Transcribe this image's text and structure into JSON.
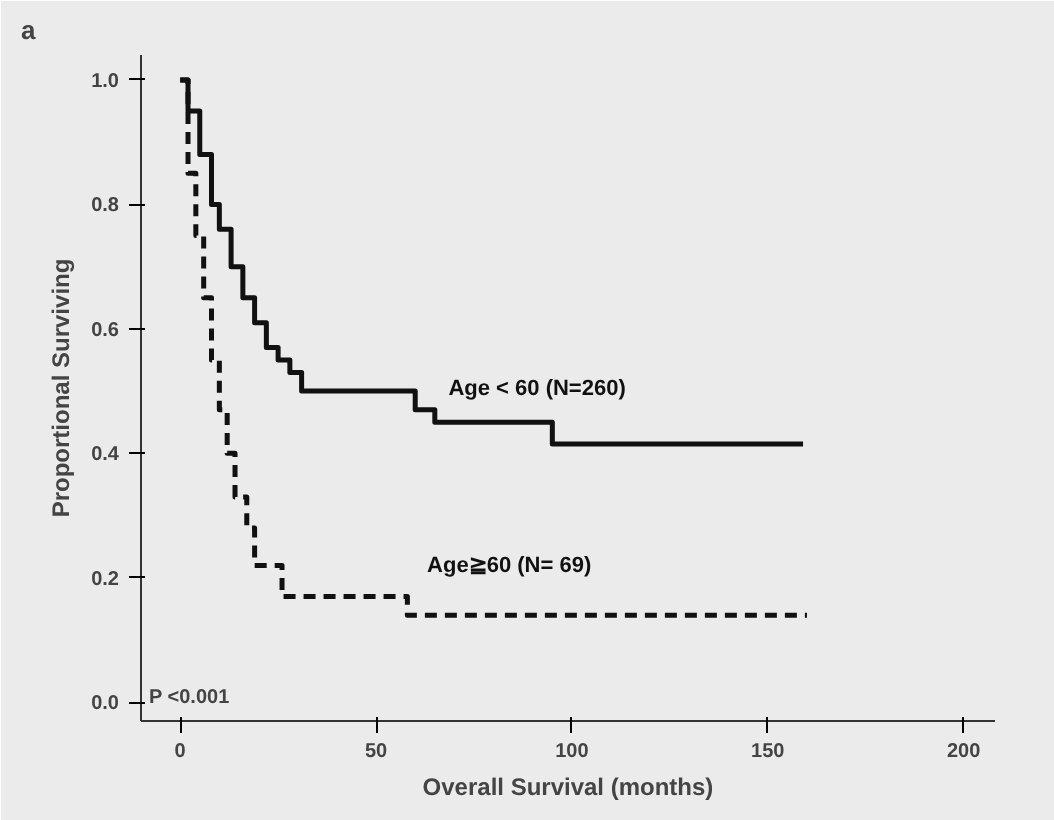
{
  "chart_data": {
    "type": "step",
    "xlabel": "Overall Survival (months)",
    "ylabel": "Proportional Surviving",
    "xlim": [
      -10,
      208
    ],
    "ylim": [
      -0.03,
      1.04
    ],
    "xticks": [
      0,
      50,
      100,
      150,
      200
    ],
    "yticks": [
      {
        "value": 0,
        "label": "0.0"
      },
      {
        "value": 0.2,
        "label": "0.2"
      },
      {
        "value": 0.4,
        "label": "0.4"
      },
      {
        "value": 0.6,
        "label": "0.6"
      },
      {
        "value": 0.8,
        "label": "0.8"
      },
      {
        "value": 1,
        "label": "1.0"
      }
    ],
    "grid": false,
    "series": [
      {
        "name": "Age < 60 (N=260)",
        "color": "#111111",
        "line_style": "solid",
        "x": [
          0,
          2,
          5,
          8,
          10,
          13,
          16,
          19,
          22,
          25,
          28,
          31,
          60,
          65,
          95,
          159
        ],
        "values": [
          1.0,
          0.95,
          0.88,
          0.8,
          0.76,
          0.7,
          0.65,
          0.61,
          0.57,
          0.55,
          0.53,
          0.5,
          0.47,
          0.45,
          0.415,
          0.415
        ]
      },
      {
        "name": "Age≧60 (N= 69)",
        "color": "#111111",
        "line_style": "dashed",
        "x": [
          0,
          2,
          4,
          6,
          8,
          10,
          12,
          14,
          17,
          19,
          26,
          58,
          160
        ],
        "values": [
          1.0,
          0.85,
          0.75,
          0.65,
          0.55,
          0.47,
          0.4,
          0.33,
          0.28,
          0.22,
          0.17,
          0.14,
          0.14
        ]
      }
    ],
    "annotations": [
      "a",
      "P <0.001"
    ]
  }
}
